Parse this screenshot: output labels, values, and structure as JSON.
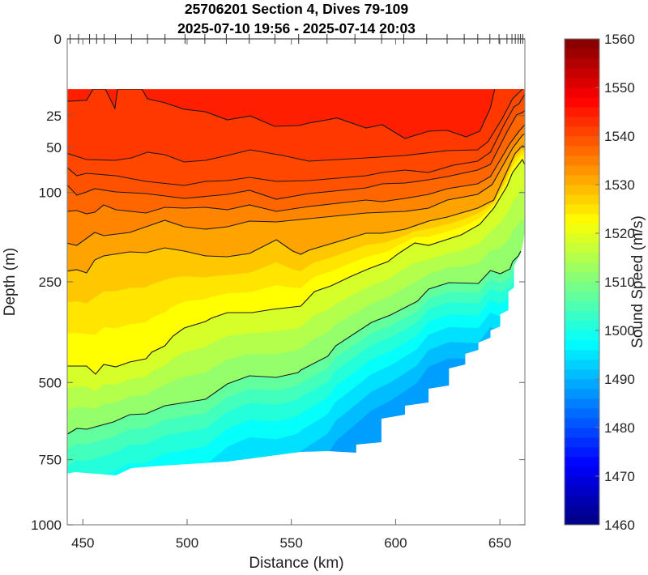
{
  "chart_data": {
    "type": "contour",
    "title": [
      "25706201 Section 4, Dives 79-109",
      "2025-07-10 19:56 - 2025-07-14 20:03"
    ],
    "xlabel": "Distance (km)",
    "ylabel": "Depth (m)",
    "xlim": [
      442.5,
      662
    ],
    "ylim": [
      0,
      1000
    ],
    "y_scale": "sqrt",
    "y_reversed": true,
    "grid": false,
    "x_ticks": [
      450,
      500,
      550,
      600,
      650
    ],
    "y_ticks": [
      0,
      25,
      50,
      100,
      250,
      500,
      750,
      1000
    ],
    "colorbar": {
      "label": "Sound Speed (m/s)",
      "range": [
        1460,
        1560
      ],
      "ticks": [
        1460,
        1470,
        1480,
        1490,
        1500,
        1510,
        1520,
        1530,
        1540,
        1550,
        1560
      ],
      "colormap": "jet",
      "placement": "right"
    },
    "dive_markers_km": [
      443.9,
      447.9,
      453.2,
      456.6,
      460.2,
      465.6,
      473.3,
      481,
      489.4,
      499,
      508.5,
      518.8,
      529.8,
      542.1,
      553.5,
      567.1,
      580.5,
      593.3,
      603.9,
      614.9,
      624.7,
      632.9,
      639.4,
      645.2,
      649.6,
      653.4,
      655.8,
      657.4,
      658.8,
      659.9,
      661
    ],
    "data_extent": [
      [
        442,
        10.7
      ],
      [
        664,
        10.7
      ],
      [
        663.1,
        136.9
      ],
      [
        661.1,
        176.4
      ],
      [
        660,
        195.1
      ],
      [
        656.8,
        217.8
      ],
      [
        656.8,
        261.8
      ],
      [
        654.1,
        270.4
      ],
      [
        654.1,
        311.7
      ],
      [
        650.2,
        321.1
      ],
      [
        650.2,
        350.1
      ],
      [
        645.5,
        360
      ],
      [
        645.5,
        378.2
      ],
      [
        639.7,
        390.6
      ],
      [
        639.7,
        409.6
      ],
      [
        633.4,
        420.3
      ],
      [
        633.4,
        448.9
      ],
      [
        625.6,
        460.1
      ],
      [
        625.6,
        508.9
      ],
      [
        615.8,
        518.4
      ],
      [
        615.8,
        560
      ],
      [
        604.5,
        570
      ],
      [
        604.5,
        598
      ],
      [
        593.2,
        611
      ],
      [
        593.2,
        688.9
      ],
      [
        581.1,
        697.2
      ],
      [
        581.1,
        725.3
      ],
      [
        567.4,
        719.7
      ],
      [
        554.5,
        722.5
      ],
      [
        519.3,
        756.9
      ],
      [
        488.1,
        771.5
      ],
      [
        473.3,
        780.3
      ],
      [
        465.8,
        807
      ],
      [
        446.3,
        795.1
      ],
      [
        442,
        801.1
      ]
    ],
    "contours": [
      {
        "level": 1543,
        "points": [
          [
            442,
            16.5
          ],
          [
            451.8,
            16
          ],
          [
            454.9,
            10.7
          ],
          [
            460.8,
            10.7
          ],
          [
            465.4,
            20.5
          ],
          [
            466.6,
            10.7
          ],
          [
            478.3,
            10.7
          ],
          [
            481,
            15.2
          ],
          [
            489.3,
            17.3
          ],
          [
            498.6,
            21
          ],
          [
            508.8,
            22.5
          ],
          [
            519.3,
            27.8
          ],
          [
            530.3,
            25.1
          ],
          [
            542,
            32.4
          ],
          [
            553.7,
            31.8
          ],
          [
            558.4,
            30
          ],
          [
            572,
            26.5
          ],
          [
            585.8,
            33.6
          ],
          [
            593.6,
            31.2
          ],
          [
            604.5,
            42
          ],
          [
            615.8,
            36.1
          ],
          [
            624.8,
            35.5
          ],
          [
            633.8,
            40.7
          ],
          [
            640.4,
            36.1
          ],
          [
            645.5,
            20.1
          ],
          [
            647.5,
            10.7
          ]
        ]
      },
      {
        "level": 1541,
        "points": [
          [
            442,
            55.2
          ],
          [
            451.8,
            61.7
          ],
          [
            465.4,
            62.5
          ],
          [
            473.3,
            60
          ],
          [
            481,
            54.4
          ],
          [
            489.3,
            56.8
          ],
          [
            498.6,
            64.2
          ],
          [
            508.8,
            62.5
          ],
          [
            519.3,
            57.6
          ],
          [
            530.3,
            52.1
          ],
          [
            545.9,
            57.6
          ],
          [
            558.4,
            63.3
          ],
          [
            585.8,
            60
          ],
          [
            604.5,
            57.6
          ],
          [
            624.8,
            52.9
          ],
          [
            639.3,
            52.1
          ],
          [
            644.3,
            44.8
          ],
          [
            651,
            27.2
          ],
          [
            656.1,
            15.2
          ],
          [
            658.8,
            12.5
          ],
          [
            660.8,
            10.7
          ]
        ]
      },
      {
        "level": 1540,
        "points": [
          [
            442,
            69.3
          ],
          [
            447.1,
            79.3
          ],
          [
            451.8,
            76.5
          ],
          [
            465.8,
            79.3
          ],
          [
            480.3,
            86
          ],
          [
            498.6,
            91
          ],
          [
            508.8,
            86
          ],
          [
            519.3,
            85.1
          ],
          [
            529.9,
            81.2
          ],
          [
            542.8,
            86
          ],
          [
            558.4,
            85.1
          ],
          [
            585.8,
            79.3
          ],
          [
            593.6,
            75.6
          ],
          [
            604.5,
            72.9
          ],
          [
            615.8,
            75.6
          ],
          [
            627.6,
            67.6
          ],
          [
            639.3,
            63.3
          ],
          [
            645.5,
            54.4
          ],
          [
            652.2,
            30.6
          ],
          [
            656.8,
            19.6
          ],
          [
            659.2,
            17.8
          ],
          [
            661.9,
            13.2
          ],
          [
            663.1,
            10.7
          ]
        ]
      },
      {
        "level": 1539,
        "points": [
          [
            442,
            89
          ],
          [
            447.1,
            103.5
          ],
          [
            451.8,
            99.2
          ],
          [
            455.7,
            95.1
          ],
          [
            465.8,
            99.2
          ],
          [
            480.3,
            101.3
          ],
          [
            498.6,
            107.8
          ],
          [
            519.3,
            102.4
          ],
          [
            529.9,
            97.1
          ],
          [
            542.8,
            108.9
          ],
          [
            558.4,
            101.3
          ],
          [
            585.8,
            94
          ],
          [
            593.6,
            89
          ],
          [
            604.5,
            88
          ],
          [
            615.8,
            84.1
          ],
          [
            624.8,
            80.3
          ],
          [
            639.3,
            72.9
          ],
          [
            645.5,
            66.7
          ],
          [
            653.4,
            36.7
          ],
          [
            658,
            24.5
          ],
          [
            660.8,
            23
          ],
          [
            662.7,
            21
          ],
          [
            663.9,
            16.5
          ]
        ]
      },
      {
        "level": 1536,
        "points": [
          [
            442,
            126
          ],
          [
            447.1,
            124.8
          ],
          [
            451.8,
            129.6
          ],
          [
            455.7,
            127.2
          ],
          [
            460,
            116.7
          ],
          [
            465.8,
            123.7
          ],
          [
            480.3,
            128.4
          ],
          [
            489.3,
            120.2
          ],
          [
            498.6,
            121.3
          ],
          [
            508.8,
            120.2
          ],
          [
            519.3,
            123.7
          ],
          [
            529.9,
            116.7
          ],
          [
            542.8,
            126
          ],
          [
            558.4,
            119
          ],
          [
            585.8,
            110
          ],
          [
            593.6,
            112.2
          ],
          [
            604.5,
            107.8
          ],
          [
            615.8,
            102.4
          ],
          [
            624.8,
            95.1
          ],
          [
            639.3,
            89
          ],
          [
            645.5,
            80.3
          ],
          [
            654.9,
            46.2
          ],
          [
            659.2,
            36.1
          ],
          [
            662.7,
            30
          ],
          [
            663.9,
            26.1
          ]
        ]
      },
      {
        "level": 1533,
        "points": [
          [
            442,
            176.4
          ],
          [
            447.1,
            180.6
          ],
          [
            455.7,
            158.7
          ],
          [
            460,
            164
          ],
          [
            472.5,
            158.7
          ],
          [
            480.3,
            149.5
          ],
          [
            489.3,
            139.4
          ],
          [
            498.6,
            149.5
          ],
          [
            508.8,
            153.4
          ],
          [
            519.3,
            149.5
          ],
          [
            529.9,
            140.6
          ],
          [
            542.8,
            141.9
          ],
          [
            558.4,
            136.9
          ],
          [
            585.8,
            128.4
          ],
          [
            604.5,
            126
          ],
          [
            615.8,
            121.3
          ],
          [
            624.8,
            110
          ],
          [
            639.3,
            102.4
          ],
          [
            646.3,
            90
          ],
          [
            656.1,
            50.6
          ],
          [
            660.8,
            39.3
          ],
          [
            662.7,
            38
          ],
          [
            663.9,
            34.8
          ]
        ]
      },
      {
        "level": 1530,
        "points": [
          [
            442,
            228.8
          ],
          [
            447.1,
            225.6
          ],
          [
            451.8,
            232
          ],
          [
            455.7,
            207
          ],
          [
            460,
            199.5
          ],
          [
            472.5,
            192.1
          ],
          [
            480.3,
            193.6
          ],
          [
            489.3,
            184.9
          ],
          [
            498.6,
            190.7
          ],
          [
            508.8,
            199.5
          ],
          [
            519.3,
            201
          ],
          [
            529.9,
            195.1
          ],
          [
            542.8,
            170.9
          ],
          [
            550.6,
            190.7
          ],
          [
            554.5,
            196.6
          ],
          [
            558.4,
            189.2
          ],
          [
            585.8,
            160
          ],
          [
            593.6,
            160
          ],
          [
            604.5,
            153.4
          ],
          [
            615.8,
            140.6
          ],
          [
            624.8,
            134.4
          ],
          [
            639.3,
            121.3
          ],
          [
            647.1,
            110
          ],
          [
            657.2,
            56
          ],
          [
            660.8,
            48.4
          ],
          [
            662.7,
            49.9
          ],
          [
            663.9,
            44.8
          ]
        ]
      },
      {
        "level": 1520,
        "points": [
          [
            442,
            453.4
          ],
          [
            451.8,
            453.4
          ],
          [
            456.1,
            476.1
          ],
          [
            460,
            448.9
          ],
          [
            465.8,
            455.6
          ],
          [
            472.5,
            442.2
          ],
          [
            480.3,
            433.4
          ],
          [
            483,
            416
          ],
          [
            489.3,
            399
          ],
          [
            493.2,
            374.1
          ],
          [
            498.6,
            354
          ],
          [
            508.8,
            338.3
          ],
          [
            511.5,
            330.6
          ],
          [
            519.3,
            317.3
          ],
          [
            531.1,
            317.3
          ],
          [
            540.9,
            309.9
          ],
          [
            554.5,
            302.5
          ],
          [
            561.1,
            270.4
          ],
          [
            569,
            258.4
          ],
          [
            578,
            240.1
          ],
          [
            586.9,
            224
          ],
          [
            596.3,
            210.1
          ],
          [
            601.4,
            195.1
          ],
          [
            609.2,
            176.4
          ],
          [
            615.8,
            180.6
          ],
          [
            631.5,
            162.7
          ],
          [
            640.4,
            145.7
          ],
          [
            647.1,
            121.3
          ],
          [
            653.4,
            92
          ],
          [
            656.1,
            75.6
          ],
          [
            660.8,
            61.7
          ],
          [
            662.7,
            70.2
          ],
          [
            663.9,
            64.2
          ]
        ]
      },
      {
        "level": 1508,
        "points": [
          [
            442,
            664.2
          ],
          [
            447.1,
            642.7
          ],
          [
            451.8,
            645.4
          ],
          [
            464.7,
            621.5
          ],
          [
            472.5,
            598
          ],
          [
            480.3,
            595.5
          ],
          [
            489.3,
            570
          ],
          [
            508.8,
            550.1
          ],
          [
            519.3,
            504.1
          ],
          [
            529.9,
            480.7
          ],
          [
            542.8,
            485.4
          ],
          [
            553.3,
            471.5
          ],
          [
            554.5,
            464.7
          ],
          [
            567.4,
            426.8
          ],
          [
            571.3,
            399
          ],
          [
            588.5,
            340.3
          ],
          [
            597.5,
            323
          ],
          [
            610.4,
            291.6
          ],
          [
            615.8,
            265.2
          ],
          [
            625.6,
            251.7
          ],
          [
            639.7,
            253.3
          ],
          [
            645.5,
            227.2
          ],
          [
            650.2,
            233.6
          ],
          [
            654.9,
            224
          ],
          [
            656.1,
            210.1
          ],
          [
            658.8,
            199.5
          ],
          [
            660,
            190.7
          ]
        ]
      }
    ]
  }
}
